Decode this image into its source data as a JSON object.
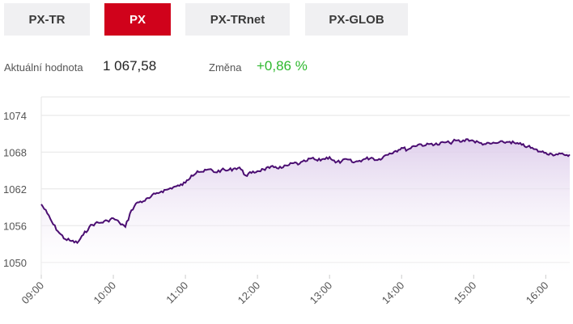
{
  "tabs": [
    {
      "label": "PX-TR",
      "active": false
    },
    {
      "label": "PX",
      "active": true
    },
    {
      "label": "PX-TRnet",
      "active": false
    },
    {
      "label": "PX-GLOB",
      "active": false
    }
  ],
  "stats": {
    "value_label": "Aktuální hodnota",
    "value": "1 067,58",
    "change_label": "Změna",
    "change": "+0,86 %"
  },
  "colors": {
    "accent": "#d0021b",
    "line": "#4b0e72",
    "fill": "#e9e0f1",
    "change_positive": "#2eb82e",
    "tab_bg": "#f0f0f2"
  },
  "chart_data": {
    "type": "area",
    "ylim": [
      1048,
      1077
    ],
    "xlim": [
      "09:00",
      "16:20"
    ],
    "yticks": [
      "1074",
      "1068",
      "1062",
      "1056",
      "1050"
    ],
    "xticks": [
      "09:00",
      "10:00",
      "11:00",
      "12:00",
      "13:00",
      "14:00",
      "15:00",
      "16:00"
    ],
    "grid": true,
    "series": [
      {
        "x": [
          "09:00",
          "09:05",
          "09:10",
          "09:15",
          "09:20",
          "09:25",
          "09:30",
          "09:35",
          "09:40",
          "09:45",
          "09:50",
          "09:55",
          "10:00",
          "10:05",
          "10:10",
          "10:15",
          "10:20",
          "10:25",
          "10:30",
          "10:35",
          "10:40",
          "10:45",
          "10:50",
          "10:55",
          "11:00",
          "11:05",
          "11:10",
          "11:15",
          "11:20",
          "11:25",
          "11:30",
          "11:35",
          "11:40",
          "11:45",
          "11:50",
          "11:55",
          "12:00",
          "12:05",
          "12:10",
          "12:15",
          "12:20",
          "12:25",
          "12:30",
          "12:35",
          "12:40",
          "12:45",
          "12:50",
          "12:55",
          "13:00",
          "13:05",
          "13:10",
          "13:15",
          "13:20",
          "13:25",
          "13:30",
          "13:35",
          "13:40",
          "13:45",
          "13:50",
          "13:55",
          "14:00",
          "14:05",
          "14:10",
          "14:15",
          "14:20",
          "14:25",
          "14:30",
          "14:35",
          "14:40",
          "14:45",
          "14:50",
          "14:55",
          "15:00",
          "15:05",
          "15:10",
          "15:15",
          "15:20",
          "15:25",
          "15:30",
          "15:35",
          "15:40",
          "15:45",
          "15:50",
          "15:55",
          "16:00",
          "16:05",
          "16:10",
          "16:15",
          "16:20"
        ],
        "values": [
          1059.5,
          1058.0,
          1056.2,
          1054.8,
          1053.8,
          1053.5,
          1053.2,
          1054.5,
          1055.8,
          1056.4,
          1056.5,
          1056.8,
          1057.2,
          1056.5,
          1055.8,
          1058.5,
          1059.8,
          1060.0,
          1060.5,
          1061.2,
          1061.6,
          1061.9,
          1062.3,
          1062.5,
          1063.0,
          1064.2,
          1064.9,
          1064.8,
          1065.2,
          1064.7,
          1065.1,
          1065.0,
          1065.3,
          1065.5,
          1064.2,
          1064.6,
          1064.9,
          1065.2,
          1065.4,
          1065.6,
          1065.4,
          1065.8,
          1066.2,
          1066.1,
          1066.5,
          1067.0,
          1066.6,
          1066.9,
          1067.2,
          1066.3,
          1066.5,
          1066.8,
          1066.3,
          1066.6,
          1066.9,
          1067.1,
          1066.7,
          1067.3,
          1067.8,
          1068.2,
          1068.7,
          1068.4,
          1069.0,
          1069.3,
          1069.1,
          1069.4,
          1069.2,
          1069.6,
          1069.5,
          1069.9,
          1069.7,
          1070.1,
          1069.8,
          1069.5,
          1069.3,
          1069.4,
          1069.5,
          1069.6,
          1069.7,
          1069.4,
          1069.2,
          1068.9,
          1068.5,
          1068.1,
          1067.9,
          1067.7,
          1067.6,
          1067.6,
          1067.6
        ]
      }
    ]
  }
}
